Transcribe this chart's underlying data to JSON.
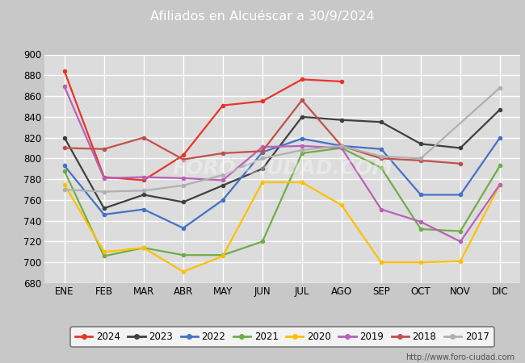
{
  "title": "Afiliados en Alcuéscar a 30/9/2024",
  "title_bg_color": "#4472c4",
  "title_text_color": "#ffffff",
  "ylim": [
    680,
    900
  ],
  "yticks": [
    680,
    700,
    720,
    740,
    760,
    780,
    800,
    820,
    840,
    860,
    880,
    900
  ],
  "months": [
    "ENE",
    "FEB",
    "MAR",
    "ABR",
    "MAY",
    "JUN",
    "JUL",
    "AGO",
    "SEP",
    "OCT",
    "NOV",
    "DIC"
  ],
  "background_color": "#c8c8c8",
  "plot_bg_color": "#dcdcdc",
  "grid_color": "#ffffff",
  "watermark": "FORO-CIUDAD.COM",
  "url": "http://www.foro-ciudad.com",
  "series": [
    {
      "year": "2024",
      "color": "#e8352a",
      "linewidth": 1.6,
      "data_full": [
        884,
        782,
        779,
        803,
        851,
        855,
        876,
        874,
        null,
        null,
        null,
        null
      ]
    },
    {
      "year": "2023",
      "color": "#404040",
      "linewidth": 1.6,
      "data_full": [
        820,
        752,
        765,
        758,
        774,
        790,
        840,
        837,
        835,
        814,
        810,
        847
      ]
    },
    {
      "year": "2022",
      "color": "#4472c4",
      "linewidth": 1.6,
      "data_full": [
        793,
        746,
        751,
        733,
        760,
        806,
        819,
        812,
        809,
        765,
        765,
        820
      ]
    },
    {
      "year": "2021",
      "color": "#70ad47",
      "linewidth": 1.6,
      "data_full": [
        788,
        706,
        714,
        707,
        707,
        720,
        805,
        810,
        791,
        732,
        730,
        793
      ]
    },
    {
      "year": "2020",
      "color": "#ffc000",
      "linewidth": 1.6,
      "data_full": [
        775,
        710,
        714,
        691,
        706,
        777,
        777,
        755,
        700,
        700,
        701,
        775
      ]
    },
    {
      "year": "2019",
      "color": "#b862b8",
      "linewidth": 1.6,
      "data_full": [
        869,
        781,
        782,
        781,
        779,
        811,
        812,
        810,
        751,
        739,
        720,
        775
      ]
    },
    {
      "year": "2018",
      "color": "#c0504d",
      "linewidth": 1.6,
      "data_full": [
        810,
        809,
        820,
        799,
        805,
        807,
        856,
        812,
        800,
        798,
        795,
        null
      ]
    },
    {
      "year": "2017",
      "color": "#b0b0b0",
      "linewidth": 1.6,
      "data_full": [
        770,
        768,
        769,
        774,
        784,
        800,
        808,
        812,
        802,
        800,
        null,
        868
      ]
    }
  ],
  "legend_box_color": "#ffffff",
  "legend_border_color": "#606060"
}
